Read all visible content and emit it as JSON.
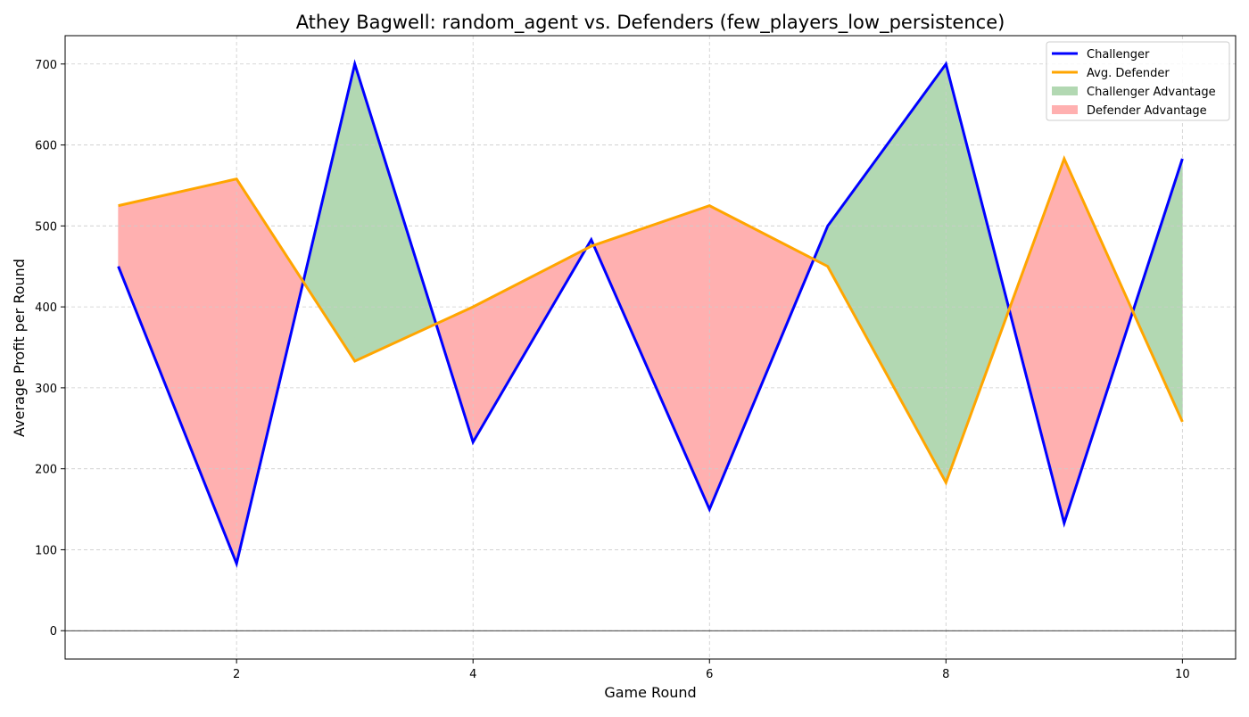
{
  "chart_data": {
    "type": "line",
    "title": "Athey Bagwell: random_agent vs. Defenders (few_players_low_persistence)",
    "xlabel": "Game Round",
    "ylabel": "Average Profit per Round",
    "x": [
      1,
      2,
      3,
      4,
      5,
      6,
      7,
      8,
      9,
      10
    ],
    "xlim": [
      0.55,
      10.45
    ],
    "ylim": [
      -35,
      735
    ],
    "xticks": [
      2,
      4,
      6,
      8,
      10
    ],
    "yticks": [
      0,
      100,
      200,
      300,
      400,
      500,
      600,
      700
    ],
    "grid": true,
    "legend_position": "top-right",
    "series": [
      {
        "name": "Challenger",
        "color": "#0000ff",
        "values": [
          450,
          83,
          700,
          233,
          483,
          150,
          500,
          700,
          133,
          583
        ]
      },
      {
        "name": "Avg. Defender",
        "color": "#ffa500",
        "values": [
          525,
          558,
          333,
          400,
          475,
          525,
          450,
          183,
          583,
          258
        ]
      }
    ],
    "fills": [
      {
        "name": "Challenger Advantage",
        "color": "#b2d8b2"
      },
      {
        "name": "Defender Advantage",
        "color": "#ffb0b0"
      }
    ]
  }
}
